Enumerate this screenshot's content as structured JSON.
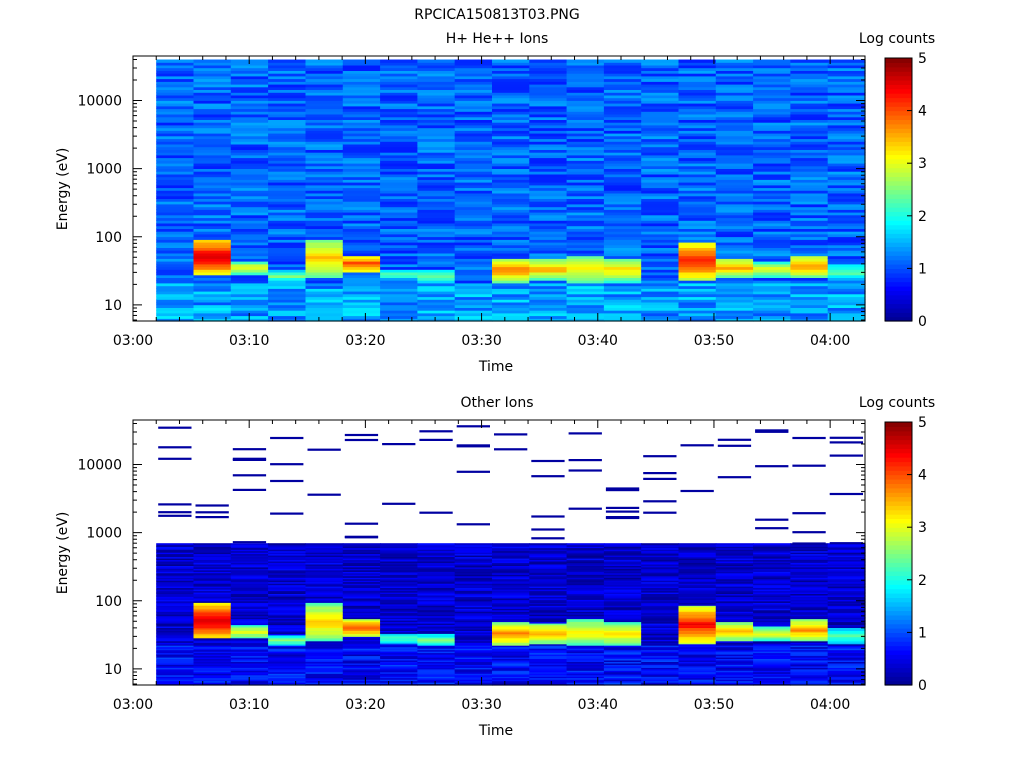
{
  "figure_title": "RPCICA150813T03.PNG",
  "colors": {
    "colormap": [
      "#00008f",
      "#0000ff",
      "#0080ff",
      "#00ffff",
      "#80ff80",
      "#ffff00",
      "#ff8000",
      "#ff0000",
      "#800000"
    ],
    "axis": "#000000",
    "background": "#ffffff"
  },
  "chart_data": [
    {
      "type": "heatmap",
      "title": "H+ He++ Ions",
      "xlabel": "Time",
      "ylabel": "Energy (eV)",
      "y_scale": "log",
      "xlim": [
        "03:00",
        "04:03"
      ],
      "ylim": [
        5.8,
        45000
      ],
      "xticks": [
        "03:00",
        "03:10",
        "03:20",
        "03:30",
        "03:40",
        "03:50",
        "04:00"
      ],
      "yticks": [
        {
          "value": 10,
          "label": "10"
        },
        {
          "value": 100,
          "label": "100"
        },
        {
          "value": 1000,
          "label": "1000"
        },
        {
          "value": 10000,
          "label": "10000"
        }
      ],
      "data_time_range": [
        "03:02",
        "04:03"
      ],
      "time_bins": 19,
      "energy_range": [
        5.8,
        40000
      ],
      "colorbar": {
        "label": "Log counts",
        "range": [
          0,
          5
        ],
        "ticks": [
          "0",
          "1",
          "2",
          "3",
          "4",
          "5"
        ]
      },
      "background_level": 1.1,
      "low_energy_band": {
        "energy_range": [
          5.8,
          22
        ],
        "level": 1.4
      },
      "peaks": [
        {
          "bin": 1,
          "energy_range": [
            28,
            95
          ],
          "peak_level": 4.7
        },
        {
          "bin": 2,
          "energy_range": [
            28,
            45
          ],
          "peak_level": 3.1
        },
        {
          "bin": 3,
          "energy_range": [
            22,
            32
          ],
          "peak_level": 2.5
        },
        {
          "bin": 4,
          "energy_range": [
            26,
            95
          ],
          "peak_level": 3.5
        },
        {
          "bin": 5,
          "energy_range": [
            30,
            55
          ],
          "peak_level": 4.1
        },
        {
          "bin": 6,
          "energy_range": [
            24,
            34
          ],
          "peak_level": 2.3
        },
        {
          "bin": 7,
          "energy_range": [
            22,
            33
          ],
          "peak_level": 2.5
        },
        {
          "bin": 9,
          "energy_range": [
            22,
            50
          ],
          "peak_level": 3.8
        },
        {
          "bin": 10,
          "energy_range": [
            24,
            48
          ],
          "peak_level": 3.6
        },
        {
          "bin": 11,
          "energy_range": [
            22,
            55
          ],
          "peak_level": 3.3
        },
        {
          "bin": 12,
          "energy_range": [
            22,
            50
          ],
          "peak_level": 3.3
        },
        {
          "bin": 14,
          "energy_range": [
            24,
            85
          ],
          "peak_level": 4.4
        },
        {
          "bin": 15,
          "energy_range": [
            26,
            50
          ],
          "peak_level": 3.6
        },
        {
          "bin": 16,
          "energy_range": [
            26,
            42
          ],
          "peak_level": 3.1
        },
        {
          "bin": 17,
          "energy_range": [
            26,
            55
          ],
          "peak_level": 3.7
        },
        {
          "bin": 18,
          "energy_range": [
            24,
            40
          ],
          "peak_level": 2.4
        }
      ]
    },
    {
      "type": "heatmap",
      "title": "Other Ions",
      "xlabel": "Time",
      "ylabel": "Energy (eV)",
      "y_scale": "log",
      "xlim": [
        "03:00",
        "04:03"
      ],
      "ylim": [
        5.8,
        45000
      ],
      "xticks": [
        "03:00",
        "03:10",
        "03:20",
        "03:30",
        "03:40",
        "03:50",
        "04:00"
      ],
      "yticks": [
        {
          "value": 10,
          "label": "10"
        },
        {
          "value": 100,
          "label": "100"
        },
        {
          "value": 1000,
          "label": "1000"
        },
        {
          "value": 10000,
          "label": "10000"
        }
      ],
      "data_time_range": [
        "03:02",
        "04:03"
      ],
      "time_bins": 19,
      "energy_range": [
        5.8,
        700
      ],
      "colorbar": {
        "label": "Log counts",
        "range": [
          0,
          5
        ],
        "ticks": [
          "0",
          "1",
          "2",
          "3",
          "4",
          "5"
        ]
      },
      "background_level": 0.35,
      "low_energy_band": {
        "energy_range": [
          5.8,
          22
        ],
        "level": 0.6
      },
      "sparse_counts_above_eV": 700,
      "sparse_level": 0.1,
      "peaks": [
        {
          "bin": 1,
          "energy_range": [
            28,
            95
          ],
          "peak_level": 4.7
        },
        {
          "bin": 2,
          "energy_range": [
            28,
            45
          ],
          "peak_level": 3.1
        },
        {
          "bin": 3,
          "energy_range": [
            22,
            32
          ],
          "peak_level": 2.5
        },
        {
          "bin": 4,
          "energy_range": [
            26,
            95
          ],
          "peak_level": 3.5
        },
        {
          "bin": 5,
          "energy_range": [
            30,
            55
          ],
          "peak_level": 4.1
        },
        {
          "bin": 6,
          "energy_range": [
            24,
            34
          ],
          "peak_level": 2.3
        },
        {
          "bin": 7,
          "energy_range": [
            22,
            33
          ],
          "peak_level": 2.5
        },
        {
          "bin": 9,
          "energy_range": [
            22,
            50
          ],
          "peak_level": 3.8
        },
        {
          "bin": 10,
          "energy_range": [
            24,
            48
          ],
          "peak_level": 3.6
        },
        {
          "bin": 11,
          "energy_range": [
            22,
            55
          ],
          "peak_level": 3.3
        },
        {
          "bin": 12,
          "energy_range": [
            22,
            50
          ],
          "peak_level": 3.3
        },
        {
          "bin": 14,
          "energy_range": [
            24,
            85
          ],
          "peak_level": 4.4
        },
        {
          "bin": 15,
          "energy_range": [
            26,
            50
          ],
          "peak_level": 3.6
        },
        {
          "bin": 16,
          "energy_range": [
            26,
            42
          ],
          "peak_level": 3.1
        },
        {
          "bin": 17,
          "energy_range": [
            26,
            55
          ],
          "peak_level": 3.7
        },
        {
          "bin": 18,
          "energy_range": [
            24,
            40
          ],
          "peak_level": 2.4
        }
      ]
    }
  ]
}
